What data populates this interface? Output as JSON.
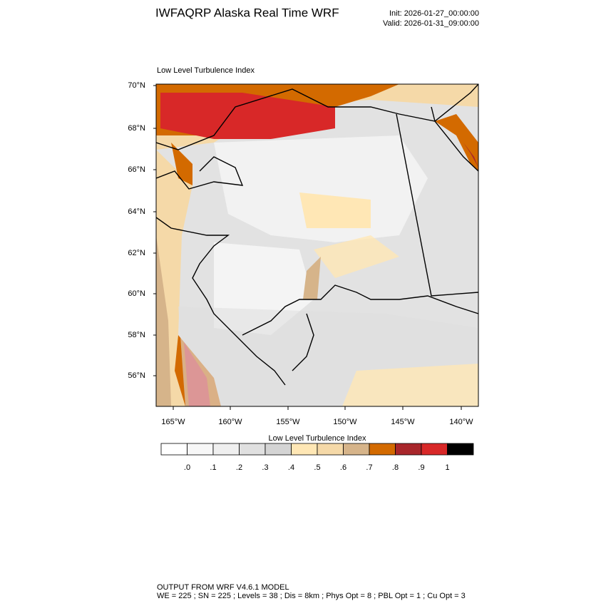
{
  "header": {
    "title": "IWFAQRP Alaska Real Time WRF",
    "init": "Init: 2026-01-27_00:00:00",
    "valid": "Valid: 2026-01-31_09:00:00"
  },
  "map": {
    "title": "Low Level Turbulence Index",
    "lat_labels": [
      "70°N",
      "68°N",
      "66°N",
      "64°N",
      "62°N",
      "60°N",
      "58°N",
      "56°N"
    ],
    "lon_labels": [
      "165°W",
      "160°W",
      "155°W",
      "150°W",
      "145°W",
      "140°W"
    ]
  },
  "colorbar": {
    "title": "Low Level Turbulence Index",
    "colors": [
      "#ffffff",
      "#f7f7f7",
      "#efefef",
      "#e0e0e0",
      "#d4d4d4",
      "#ffe7b5",
      "#f5d9a8",
      "#d6b48a",
      "#d36a00",
      "#a8262b",
      "#d82828",
      "#000000"
    ],
    "labels": [
      ".0",
      ".1",
      ".2",
      ".3",
      ".4",
      ".5",
      ".6",
      ".7",
      ".8",
      ".9",
      "1"
    ]
  },
  "footer": {
    "line1": "OUTPUT FROM WRF V4.6.1 MODEL",
    "line2": "WE = 225 ; SN = 225 ; Levels = 38 ; Dis = 8km ; Phys Opt = 8 ; PBL Opt = 1 ; Cu Opt = 3"
  }
}
